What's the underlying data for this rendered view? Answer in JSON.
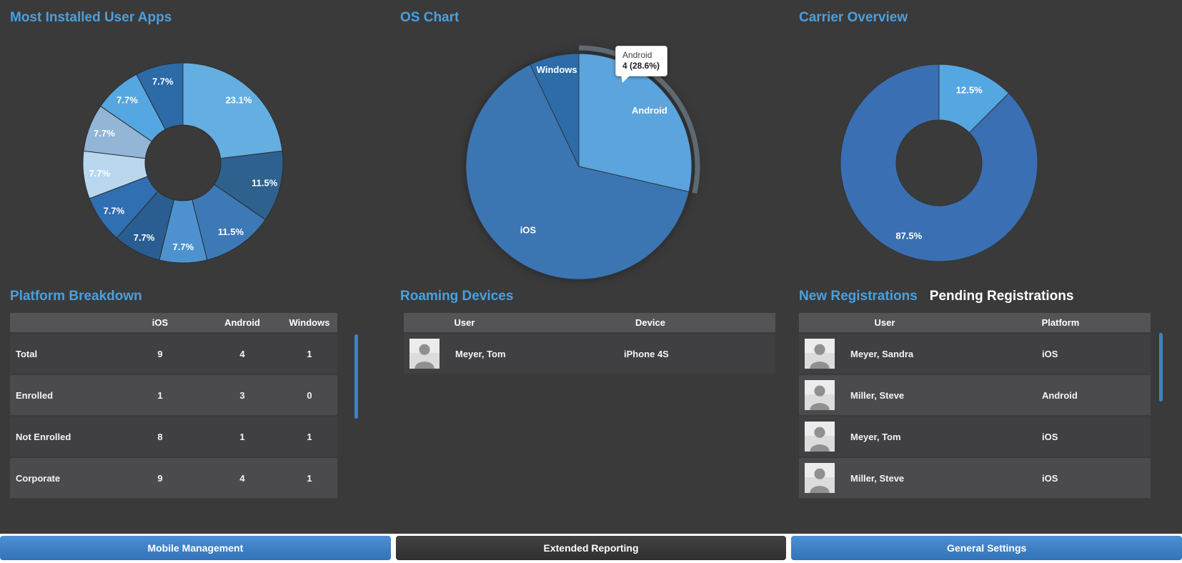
{
  "colors": {
    "background": "#3a3a3b",
    "accent_blue": "#4aa0dd",
    "scrollbar_blue": "#3f82c6",
    "button_blue": "#3b7ec6",
    "button_dark": "#383838"
  },
  "chart_data": [
    {
      "id": "apps",
      "type": "donut",
      "title": "Most Installed User Apps",
      "legend_position": "none",
      "slices": [
        {
          "label": "23.1%",
          "value": 23.1,
          "color": "#64aee1"
        },
        {
          "label": "11.5%",
          "value": 11.5,
          "color": "#2f618f"
        },
        {
          "label": "11.5%",
          "value": 11.5,
          "color": "#3c79b6"
        },
        {
          "label": "7.7%",
          "value": 7.7,
          "color": "#4d92cf"
        },
        {
          "label": "7.7%",
          "value": 7.7,
          "color": "#2a5d91"
        },
        {
          "label": "7.7%",
          "value": 7.7,
          "color": "#2f6fb2"
        },
        {
          "label": "7.7%",
          "value": 7.7,
          "color": "#b9d8ef"
        },
        {
          "label": "7.7%",
          "value": 7.7,
          "color": "#93b5d6"
        },
        {
          "label": "7.7%",
          "value": 7.7,
          "color": "#55a7e2"
        },
        {
          "label": "7.7%",
          "value": 7.7,
          "color": "#2c6ba7"
        }
      ]
    },
    {
      "id": "os",
      "type": "pie",
      "title": "OS Chart",
      "legend_position": "none",
      "slices": [
        {
          "label": "Android",
          "value": 28.6,
          "color": "#5ba4dd",
          "highlight": true
        },
        {
          "label": "iOS",
          "value": 64.3,
          "color": "#3b76b2"
        },
        {
          "label": "Windows",
          "value": 7.1,
          "color": "#2d6ca8"
        }
      ],
      "tooltip": {
        "line1": "Android",
        "line2": "4 (28.6%)"
      }
    },
    {
      "id": "carrier",
      "type": "donut",
      "title": "Carrier Overview",
      "legend_position": "none",
      "slices": [
        {
          "label": "12.5%",
          "value": 12.5,
          "color": "#55a7e2"
        },
        {
          "label": "87.5%",
          "value": 87.5,
          "color": "#3a6fb3"
        }
      ]
    }
  ],
  "platform_breakdown": {
    "title": "Platform Breakdown",
    "columns": [
      "iOS",
      "Android",
      "Windows"
    ],
    "rows": [
      {
        "label": "Total",
        "values": [
          "9",
          "4",
          "1"
        ]
      },
      {
        "label": "Enrolled",
        "values": [
          "1",
          "3",
          "0"
        ]
      },
      {
        "label": "Not Enrolled",
        "values": [
          "8",
          "1",
          "1"
        ]
      },
      {
        "label": "Corporate",
        "values": [
          "9",
          "4",
          "1"
        ]
      }
    ]
  },
  "roaming_devices": {
    "title": "Roaming Devices",
    "columns": [
      "User",
      "Device"
    ],
    "rows": [
      {
        "user": "Meyer, Tom",
        "device": "iPhone 4S"
      }
    ]
  },
  "registrations": {
    "tabs": [
      {
        "label": "New Registrations",
        "active": true
      },
      {
        "label": "Pending Registrations",
        "active": false
      }
    ],
    "columns": [
      "User",
      "Platform"
    ],
    "rows": [
      {
        "user": "Meyer, Sandra",
        "platform": "iOS"
      },
      {
        "user": "Miller, Steve",
        "platform": "Android"
      },
      {
        "user": "Meyer, Tom",
        "platform": "iOS"
      },
      {
        "user": "Miller, Steve",
        "platform": "iOS"
      }
    ]
  },
  "footer": {
    "buttons": [
      {
        "label": "Mobile Management",
        "style": "blue"
      },
      {
        "label": "Extended Reporting",
        "style": "dark"
      },
      {
        "label": "General Settings",
        "style": "blue"
      }
    ]
  }
}
